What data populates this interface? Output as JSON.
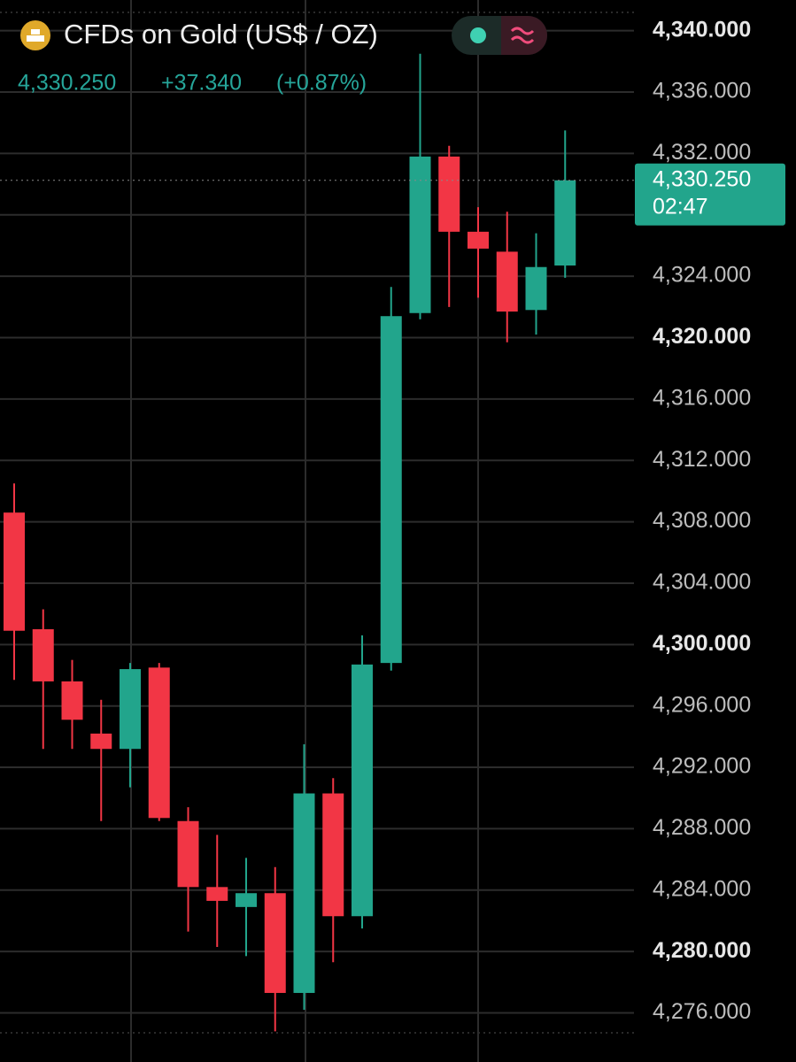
{
  "header": {
    "title": "CFDs on Gold (US$ / OZ)",
    "last": "4,330.250",
    "change": "+37.340",
    "change_pct": "(+0.87%)"
  },
  "chart_data": {
    "type": "candlestick",
    "open": [
      4308.6,
      4301.0,
      4297.6,
      4294.2,
      4293.2,
      4298.5,
      4288.5,
      4284.2,
      4282.9,
      4283.8,
      4277.3,
      4290.3,
      4282.3,
      4298.8,
      4321.6,
      4331.8,
      4326.9,
      4325.6,
      4321.8,
      4324.7
    ],
    "high": [
      4310.5,
      4302.3,
      4299.0,
      4296.4,
      4298.8,
      4298.8,
      4289.4,
      4287.6,
      4286.1,
      4285.5,
      4293.5,
      4291.3,
      4300.6,
      4323.3,
      4338.5,
      4332.5,
      4328.5,
      4328.2,
      4326.8,
      4333.5
    ],
    "low": [
      4297.7,
      4293.2,
      4293.2,
      4288.5,
      4290.7,
      4288.5,
      4281.3,
      4280.3,
      4279.7,
      4274.8,
      4276.2,
      4279.3,
      4281.5,
      4298.3,
      4321.2,
      4322.0,
      4322.6,
      4319.7,
      4320.2,
      4323.9
    ],
    "close": [
      4300.9,
      4297.6,
      4295.1,
      4293.2,
      4298.4,
      4288.7,
      4284.2,
      4283.3,
      4283.8,
      4277.3,
      4290.3,
      4282.3,
      4298.7,
      4321.4,
      4331.8,
      4326.9,
      4325.8,
      4321.7,
      4324.6,
      4330.25
    ],
    "up_color": "#22a58c",
    "down_color": "#f23645",
    "ylim": [
      4272.8,
      4342
    ],
    "yticks": [
      {
        "value": 4276,
        "label": "4,276.000"
      },
      {
        "value": 4280,
        "label": "4,280.000"
      },
      {
        "value": 4284,
        "label": "4,284.000"
      },
      {
        "value": 4288,
        "label": "4,288.000"
      },
      {
        "value": 4292,
        "label": "4,292.000"
      },
      {
        "value": 4296,
        "label": "4,296.000"
      },
      {
        "value": 4300,
        "label": "4,300.000"
      },
      {
        "value": 4304,
        "label": "4,304.000"
      },
      {
        "value": 4308,
        "label": "4,308.000"
      },
      {
        "value": 4312,
        "label": "4,312.000"
      },
      {
        "value": 4316,
        "label": "4,316.000"
      },
      {
        "value": 4320,
        "label": "4,320.000"
      },
      {
        "value": 4324,
        "label": "4,324.000"
      },
      {
        "value": 4328,
        "label": "4,328.000"
      },
      {
        "value": 4332,
        "label": "4,332.000"
      },
      {
        "value": 4336,
        "label": "4,336.000"
      },
      {
        "value": 4340,
        "label": "4,340.000"
      }
    ],
    "grid": true,
    "price_line": {
      "value": 4330.25,
      "label": "4,330.250",
      "countdown": "02:47"
    }
  }
}
